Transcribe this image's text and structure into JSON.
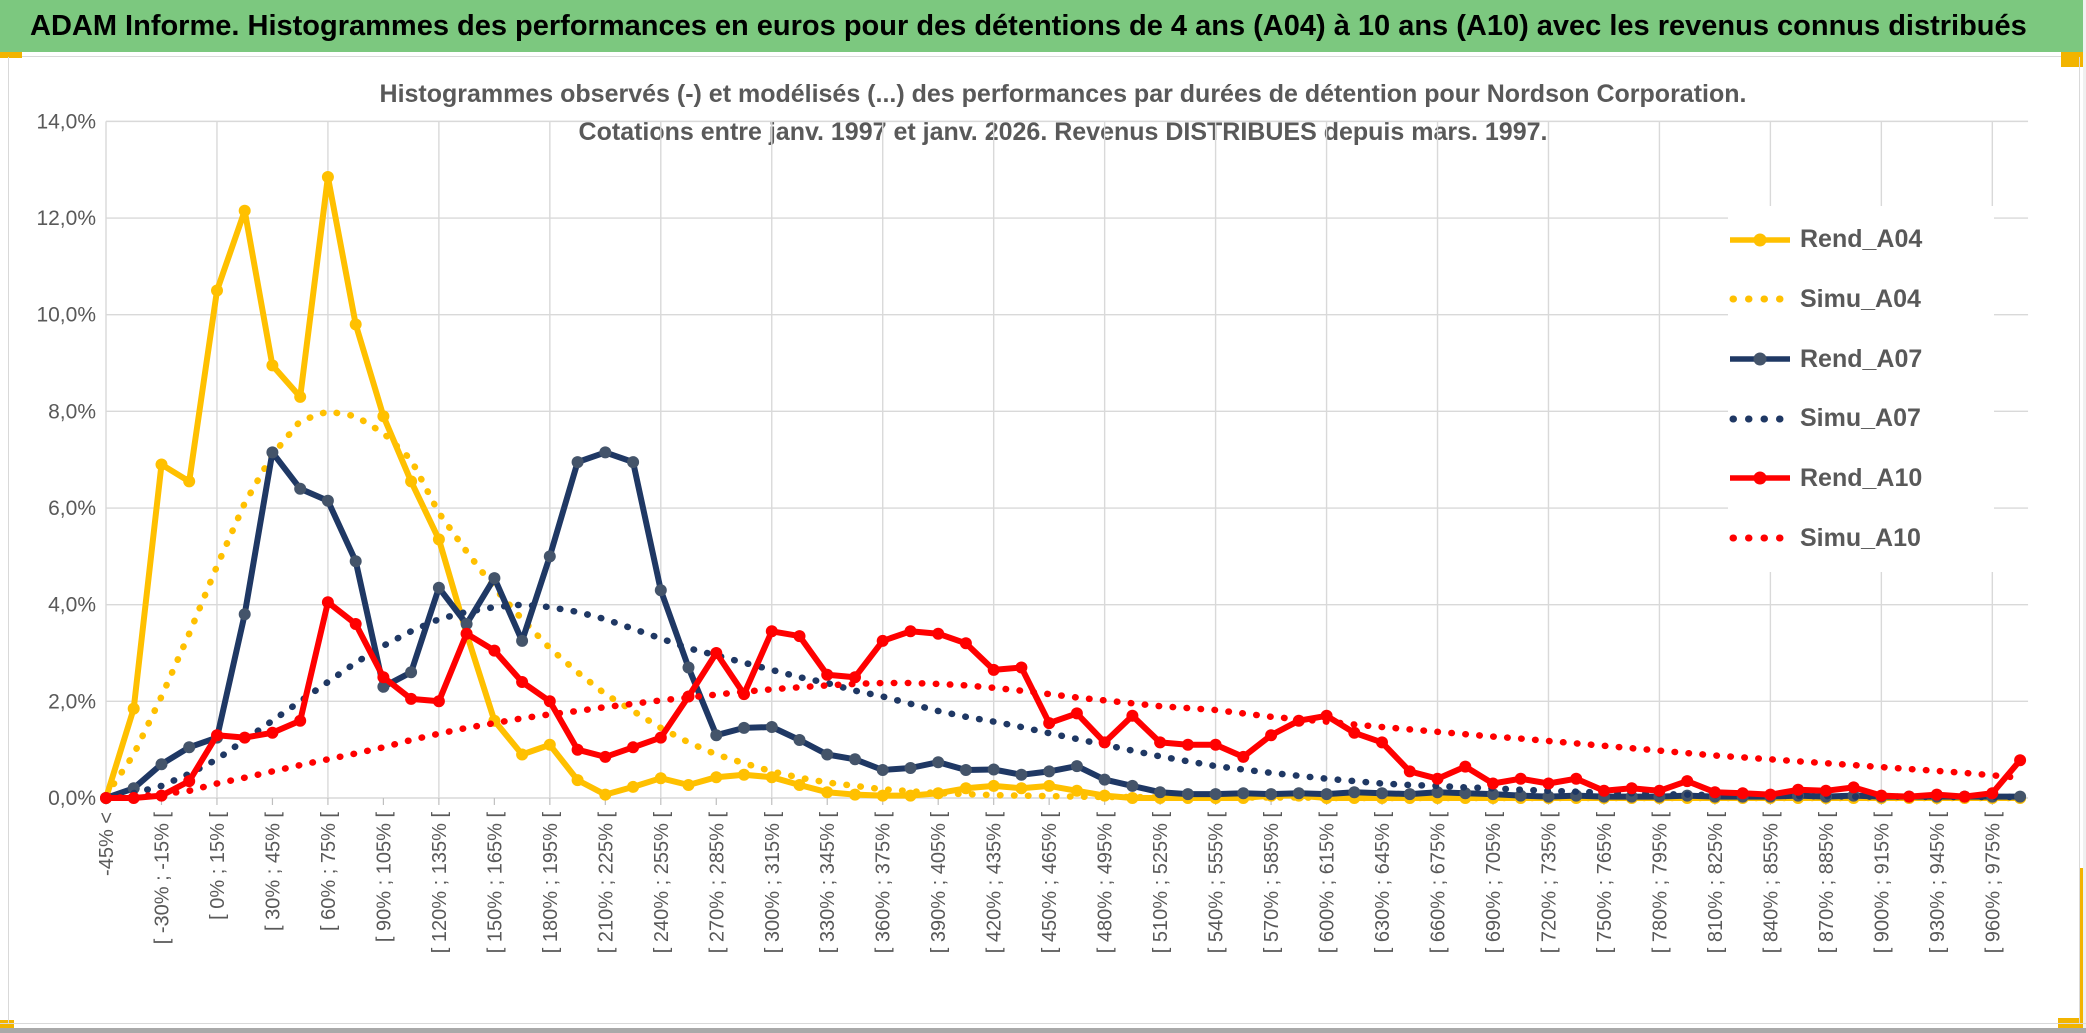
{
  "banner": {
    "title": "ADAM Informe. Histogrammes des performances en euros pour des détentions de 4 ans (A04) à 10 ans (A10) avec les revenus connus distribués"
  },
  "chart_data": {
    "type": "line",
    "title_line1": "Histogrammes observés (-) et modélisés (...) des performances par durées de détention pour Nordson Corporation.",
    "title_line2": "Cotations entre janv. 1997 et janv. 2026. Revenus DISTRIBUES depuis mars. 1997.",
    "ylabel": "",
    "xlabel": "",
    "ylim": [
      0,
      14
    ],
    "grid": true,
    "legend_position": "right",
    "n_points": 70,
    "label_every_n_points": 2,
    "y_ticks_top_down": [
      "14,0%",
      "12,0%",
      "10,0%",
      "8,0%",
      "6,0%",
      "4,0%",
      "2,0%",
      "0,0%"
    ],
    "categories": [
      "-45% <",
      "[ -30% ; -15% [",
      "[ 0% ; 15% [",
      "[ 30% ; 45% [",
      "[ 60% ; 75% [",
      "[ 90% ; 105% [",
      "[ 120% ; 135% [",
      "[ 150% ; 165% [",
      "[ 180% ; 195% [",
      "[ 210% ; 225% [",
      "[ 240% ; 255% [",
      "[ 270% ; 285% [",
      "[ 300% ; 315% [",
      "[ 330% ; 345% [",
      "[ 360% ; 375% [",
      "[ 390% ; 405% [",
      "[ 420% ; 435% [",
      "[ 450% ; 465% [",
      "[ 480% ; 495% [",
      "[ 510% ; 525% [",
      "[ 540% ; 555% [",
      "[ 570% ; 585% [",
      "[ 600% ; 615% [",
      "[ 630% ; 645% [",
      "[ 660% ; 675% [",
      "[ 690% ; 705% [",
      "[ 720% ; 735% [",
      "[ 750% ; 765% [",
      "[ 780% ; 795% [",
      "[ 810% ; 825% [",
      "[ 840% ; 855% [",
      "[ 870% ; 885% [",
      "[ 900% ; 915% [",
      "[ 930% ; 945% [",
      "[ 960% ; 975% ["
    ],
    "series": [
      {
        "name": "Rend_A04",
        "style": "solid",
        "color": "#FFC000",
        "marker_color": "#FFC000",
        "values": [
          0,
          1.85,
          6.9,
          6.55,
          10.5,
          12.15,
          8.95,
          8.3,
          12.85,
          9.8,
          7.9,
          6.55,
          5.35,
          3.4,
          1.6,
          0.9,
          1.1,
          0.37,
          0.07,
          0.23,
          0.41,
          0.27,
          0.43,
          0.48,
          0.43,
          0.27,
          0.12,
          0.07,
          0.05,
          0.05,
          0.1,
          0.2,
          0.25,
          0.2,
          0.25,
          0.15,
          0.05,
          0,
          0,
          0,
          0,
          0,
          0.05,
          0.05,
          0,
          0,
          0,
          0,
          0,
          0,
          0,
          0,
          0,
          0,
          0,
          0,
          0,
          0,
          0,
          0,
          0,
          0,
          0,
          0,
          0,
          0,
          0,
          0,
          0,
          0
        ]
      },
      {
        "name": "Simu_A04",
        "style": "dotted",
        "color": "#FFC000",
        "values": [
          0.05,
          0.9,
          2.1,
          3.4,
          4.8,
          6.1,
          7.1,
          7.8,
          8.0,
          7.9,
          7.55,
          7.0,
          5.9,
          5.1,
          4.35,
          3.7,
          3.1,
          2.6,
          2.15,
          1.8,
          1.45,
          1.15,
          0.9,
          0.72,
          0.55,
          0.42,
          0.32,
          0.25,
          0.18,
          0.14,
          0.1,
          0.08,
          0.06,
          0.05,
          0.04,
          0.03,
          0.02,
          0.02,
          0.01,
          0.01,
          0.01,
          0.01,
          0.01,
          0.01,
          0,
          0,
          0,
          0,
          0,
          0,
          0,
          0,
          0,
          0,
          0,
          0,
          0,
          0,
          0,
          0,
          0,
          0,
          0,
          0,
          0,
          0,
          0,
          0,
          0,
          0
        ]
      },
      {
        "name": "Rend_A07",
        "style": "solid",
        "color": "#1F3864",
        "marker_color": "#44546A",
        "values": [
          0,
          0.2,
          0.7,
          1.05,
          1.25,
          3.8,
          7.15,
          6.4,
          6.15,
          4.9,
          2.3,
          2.6,
          4.35,
          3.6,
          4.55,
          3.25,
          5.0,
          6.95,
          7.15,
          6.95,
          4.3,
          2.7,
          1.3,
          1.45,
          1.47,
          1.2,
          0.9,
          0.8,
          0.58,
          0.62,
          0.74,
          0.58,
          0.59,
          0.48,
          0.55,
          0.66,
          0.38,
          0.25,
          0.12,
          0.08,
          0.08,
          0.1,
          0.08,
          0.1,
          0.08,
          0.12,
          0.1,
          0.08,
          0.12,
          0.1,
          0.08,
          0.05,
          0.03,
          0.05,
          0.03,
          0.03,
          0.03,
          0.05,
          0.03,
          0.03,
          0.03,
          0.05,
          0.03,
          0.05,
          0.03,
          0.03,
          0.03,
          0.03,
          0.03,
          0.03
        ]
      },
      {
        "name": "Simu_A07",
        "style": "dotted",
        "color": "#1F3864",
        "values": [
          0.02,
          0.1,
          0.25,
          0.5,
          0.8,
          1.2,
          1.6,
          2.0,
          2.4,
          2.8,
          3.15,
          3.45,
          3.7,
          3.85,
          3.95,
          4.0,
          3.95,
          3.85,
          3.7,
          3.5,
          3.3,
          3.1,
          2.95,
          2.8,
          2.65,
          2.5,
          2.38,
          2.22,
          2.1,
          1.95,
          1.8,
          1.68,
          1.58,
          1.47,
          1.34,
          1.22,
          1.1,
          0.98,
          0.86,
          0.76,
          0.66,
          0.59,
          0.52,
          0.46,
          0.4,
          0.35,
          0.3,
          0.27,
          0.25,
          0.22,
          0.2,
          0.17,
          0.15,
          0.13,
          0.11,
          0.1,
          0.08,
          0.07,
          0.06,
          0.05,
          0.05,
          0.04,
          0.04,
          0.03,
          0.03,
          0.03,
          0.02,
          0.02,
          0.02,
          0.02
        ]
      },
      {
        "name": "Rend_A10",
        "style": "solid",
        "color": "#FF0000",
        "marker_color": "#FF0000",
        "values": [
          0,
          0,
          0.05,
          0.35,
          1.3,
          1.25,
          1.35,
          1.6,
          4.05,
          3.6,
          2.5,
          2.05,
          2.0,
          3.4,
          3.05,
          2.4,
          2.0,
          1.0,
          0.85,
          1.05,
          1.25,
          2.1,
          3.0,
          2.15,
          3.45,
          3.35,
          2.55,
          2.5,
          3.25,
          3.45,
          3.4,
          3.2,
          2.65,
          2.7,
          1.55,
          1.75,
          1.15,
          1.7,
          1.15,
          1.1,
          1.1,
          0.85,
          1.3,
          1.6,
          1.7,
          1.35,
          1.15,
          0.55,
          0.4,
          0.65,
          0.3,
          0.4,
          0.3,
          0.4,
          0.15,
          0.2,
          0.15,
          0.35,
          0.12,
          0.1,
          0.07,
          0.17,
          0.15,
          0.22,
          0.05,
          0.03,
          0.07,
          0.03,
          0.1,
          0.78
        ]
      },
      {
        "name": "Simu_A10",
        "style": "dotted",
        "color": "#FF0000",
        "values": [
          0,
          0.02,
          0.08,
          0.15,
          0.3,
          0.42,
          0.55,
          0.68,
          0.8,
          0.92,
          1.05,
          1.2,
          1.33,
          1.45,
          1.55,
          1.65,
          1.73,
          1.8,
          1.88,
          1.95,
          2.02,
          2.08,
          2.14,
          2.2,
          2.25,
          2.29,
          2.33,
          2.36,
          2.38,
          2.38,
          2.36,
          2.33,
          2.28,
          2.22,
          2.15,
          2.08,
          2.02,
          1.96,
          1.9,
          1.86,
          1.82,
          1.75,
          1.68,
          1.63,
          1.58,
          1.52,
          1.47,
          1.42,
          1.37,
          1.32,
          1.27,
          1.23,
          1.18,
          1.13,
          1.08,
          1.03,
          0.98,
          0.93,
          0.88,
          0.84,
          0.8,
          0.76,
          0.72,
          0.68,
          0.64,
          0.6,
          0.56,
          0.52,
          0.47,
          0.42
        ]
      }
    ]
  },
  "colors": {
    "banner_green": "#7CC87F",
    "gold_accent": "#F2B400",
    "grid": "#D9D9D9",
    "text_gray": "#595959",
    "bottom_bar": "#A9A9A9"
  }
}
